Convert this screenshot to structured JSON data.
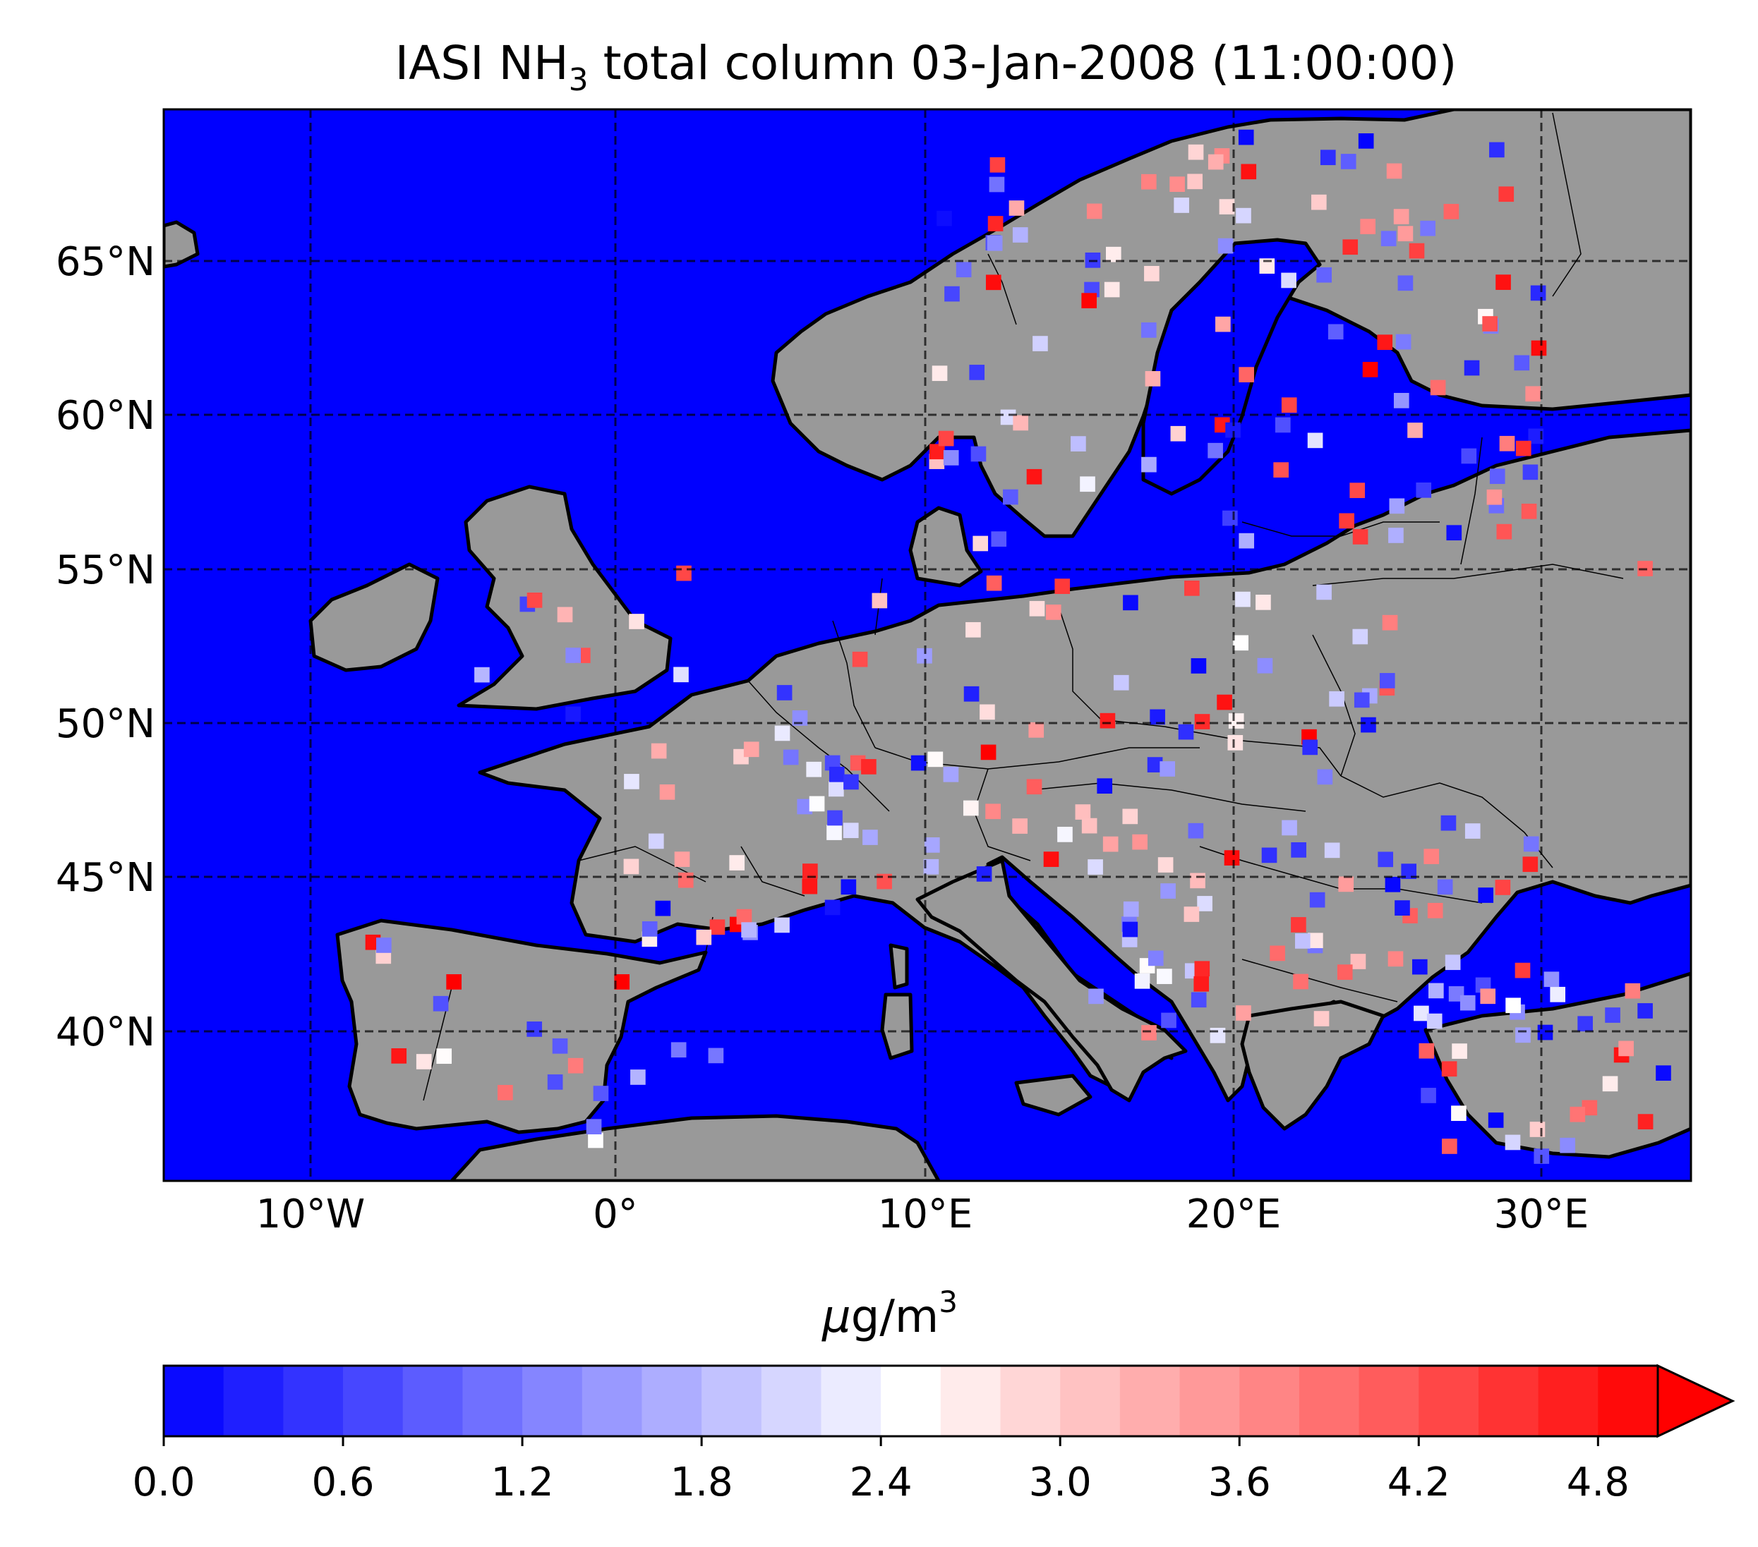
{
  "figure": {
    "title_main": "IASI NH",
    "title_sub": "3",
    "title_rest": " total column  03-Jan-2008 (11:00:00)"
  },
  "map": {
    "lon_range": [
      -15,
      35
    ],
    "lat_range": [
      35,
      70
    ],
    "lon_ticks": [
      {
        "value": -10,
        "label": "10°W"
      },
      {
        "value": 0,
        "label": "0°"
      },
      {
        "value": 10,
        "label": "10°E"
      },
      {
        "value": 20,
        "label": "20°E"
      },
      {
        "value": 30,
        "label": "30°E"
      }
    ],
    "lat_ticks": [
      {
        "value": 40,
        "label": "40°N"
      },
      {
        "value": 45,
        "label": "45°N"
      },
      {
        "value": 50,
        "label": "50°N"
      },
      {
        "value": 55,
        "label": "55°N"
      },
      {
        "value": 60,
        "label": "60°N"
      },
      {
        "value": 65,
        "label": "65°N"
      }
    ],
    "grid": "dashed",
    "colors": {
      "ocean": "#0000ff",
      "land": "#999999",
      "coast": "#000000"
    }
  },
  "colorbar": {
    "label_mu": "μ",
    "label_unit": "g/m",
    "label_sup": "3",
    "min": 0.0,
    "max": 5.0,
    "step": 0.2,
    "extend": "max",
    "ticks": [
      "0.0",
      "0.6",
      "1.2",
      "1.8",
      "2.4",
      "3.0",
      "3.6",
      "4.2",
      "4.8"
    ],
    "cmap": "bwr"
  },
  "chart_data": {
    "type": "heatmap",
    "description_source": "gridded NH3 total column values (µg/m3) over Europe; scattered cells over land",
    "samples": [
      {
        "lon": 12.0,
        "lat": 49.0,
        "value": 5.0
      },
      {
        "lon": 24.5,
        "lat": 61.5,
        "value": 5.0
      },
      {
        "lon": 13.5,
        "lat": 58.0,
        "value": 4.8
      },
      {
        "lon": 0.0,
        "lat": 41.5,
        "value": 5.0
      },
      {
        "lon": -5.5,
        "lat": 41.5,
        "value": 5.0
      },
      {
        "lon": 19.0,
        "lat": 50.0,
        "value": 4.6
      },
      {
        "lon": 22.5,
        "lat": 49.5,
        "value": 5.0
      },
      {
        "lon": 33.5,
        "lat": 55.0,
        "value": 4.0
      },
      {
        "lon": 30.0,
        "lat": 64.0,
        "value": 0.4
      },
      {
        "lon": 25.0,
        "lat": 45.5,
        "value": 0.6
      },
      {
        "lon": 16.0,
        "lat": 46.0,
        "value": 3.4
      },
      {
        "lon": 11.5,
        "lat": 53.0,
        "value": 2.8
      }
    ]
  }
}
